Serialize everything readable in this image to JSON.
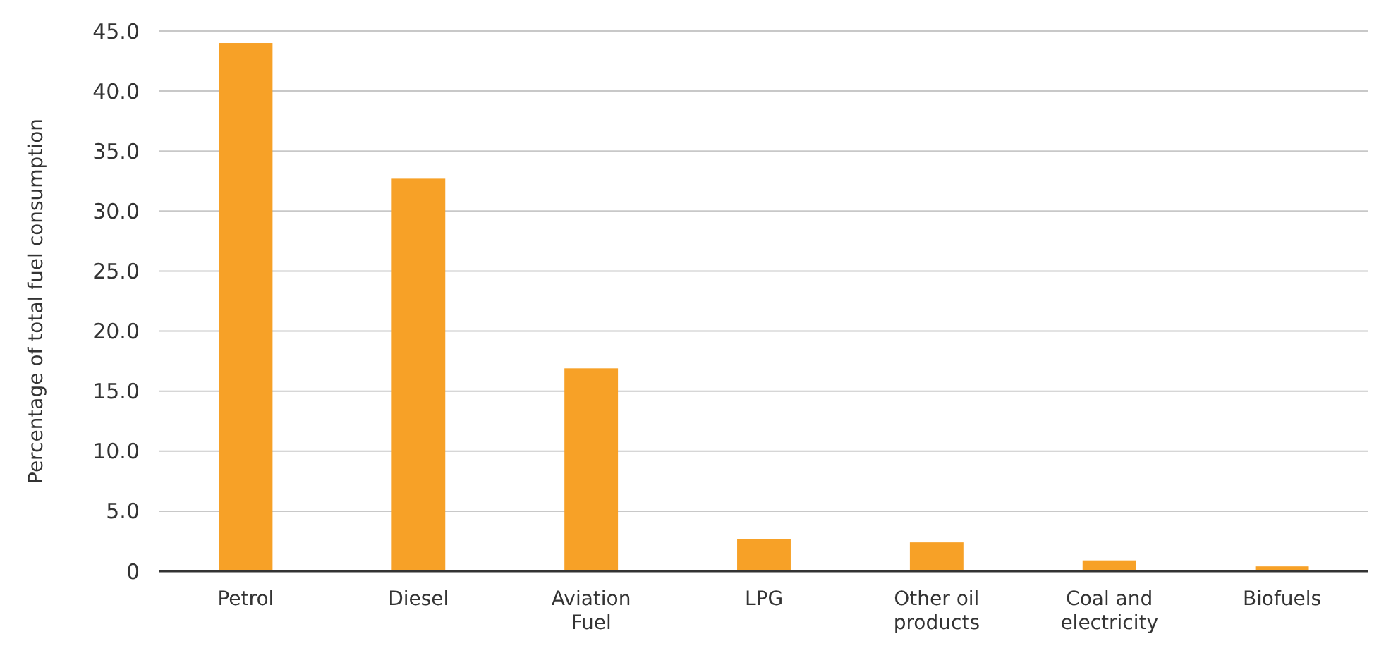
{
  "chart_data": {
    "type": "bar",
    "ylabel": "Percentage of total fuel consumption",
    "categories": [
      "Petrol",
      "Diesel",
      "Aviation Fuel",
      "LPG",
      "Other oil products",
      "Coal and electricity",
      "Biofuels"
    ],
    "values": [
      44.0,
      32.7,
      16.9,
      2.7,
      2.4,
      0.9,
      0.4
    ],
    "color": "#f7a127",
    "ylim": [
      0,
      45
    ],
    "yticks": [
      {
        "value": 0,
        "label": "0"
      },
      {
        "value": 5,
        "label": "5.0"
      },
      {
        "value": 10,
        "label": "10.0"
      },
      {
        "value": 15,
        "label": "15.0"
      },
      {
        "value": 20,
        "label": "20.0"
      },
      {
        "value": 25,
        "label": "25.0"
      },
      {
        "value": 30,
        "label": "30.0"
      },
      {
        "value": 35,
        "label": "35.0"
      },
      {
        "value": 40,
        "label": "40.0"
      },
      {
        "value": 45,
        "label": "45.0"
      }
    ],
    "grid": "y"
  }
}
